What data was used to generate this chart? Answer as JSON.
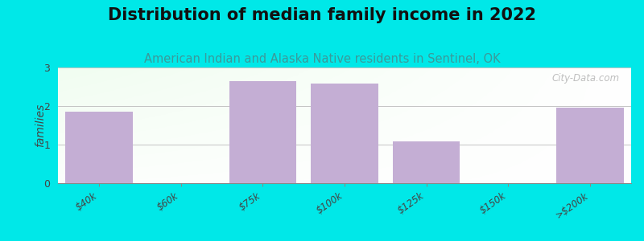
{
  "title": "Distribution of median family income in 2022",
  "subtitle": "American Indian and Alaska Native residents in Sentinel, OK",
  "categories": [
    "$40k",
    "$60k",
    "$75k",
    "$100k",
    "$125k",
    "$150k",
    ">$200k"
  ],
  "values": [
    1.85,
    0,
    2.65,
    2.58,
    1.08,
    0,
    1.95
  ],
  "bar_color": "#c4aed4",
  "background_color": "#00e8e8",
  "ylabel": "families",
  "ylim": [
    0,
    3
  ],
  "yticks": [
    0,
    1,
    2,
    3
  ],
  "title_fontsize": 15,
  "subtitle_fontsize": 10.5,
  "subtitle_color": "#3a9a9a",
  "watermark": "City-Data.com",
  "bar_width": 0.82
}
